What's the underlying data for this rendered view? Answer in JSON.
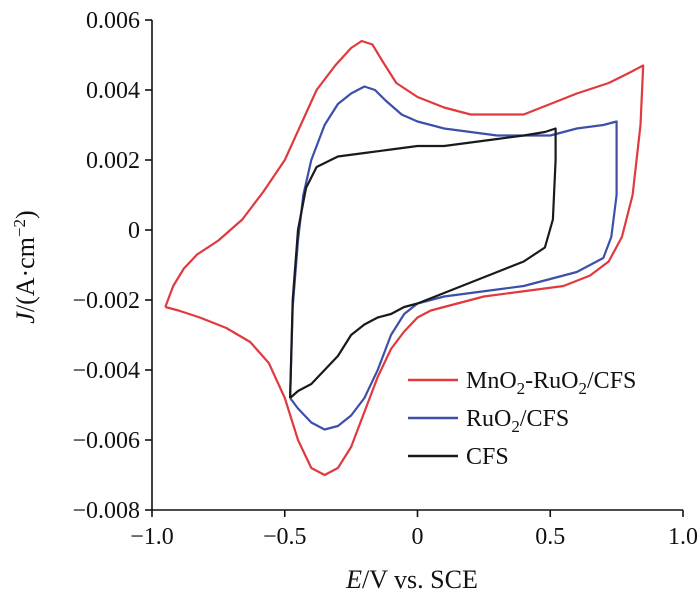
{
  "chart_data": {
    "type": "line",
    "title": "",
    "xlabel": {
      "italic": "E",
      "rest": "/V vs. SCE"
    },
    "ylabel": {
      "italic": "J",
      "pre": "/(A·cm",
      "sup": "−2",
      "post": ")"
    },
    "xlim": [
      -1.0,
      1.0
    ],
    "ylim": [
      -0.008,
      0.006
    ],
    "x_ticks": [
      {
        "value": -1.0,
        "label": "−1.0"
      },
      {
        "value": -0.5,
        "label": "−0.5"
      },
      {
        "value": 0,
        "label": "0"
      },
      {
        "value": 0.5,
        "label": "0.5"
      },
      {
        "value": 1.0,
        "label": "1.0"
      }
    ],
    "y_ticks": [
      {
        "value": 0.006,
        "label": "0.006"
      },
      {
        "value": 0.004,
        "label": "0.004"
      },
      {
        "value": 0.002,
        "label": "0.002"
      },
      {
        "value": 0,
        "label": "0"
      },
      {
        "value": -0.002,
        "label": "−0.002"
      },
      {
        "value": -0.004,
        "label": "−0.004"
      },
      {
        "value": -0.006,
        "label": "−0.006"
      },
      {
        "value": -0.008,
        "label": "−0.008"
      }
    ],
    "grid": false,
    "legend_position": "bottom-right",
    "series": [
      {
        "name": "MnO2-RuO2/CFS",
        "legend": {
          "parts": [
            {
              "t": "MnO"
            },
            {
              "t": "2",
              "sub": true
            },
            {
              "t": "-RuO"
            },
            {
              "t": "2",
              "sub": true
            },
            {
              "t": "/CFS"
            }
          ]
        },
        "color": "#e0393e",
        "points": [
          [
            -0.95,
            -0.0022
          ],
          [
            -0.92,
            -0.0016
          ],
          [
            -0.88,
            -0.0011
          ],
          [
            -0.83,
            -0.0007
          ],
          [
            -0.75,
            -0.0003
          ],
          [
            -0.66,
            0.0003
          ],
          [
            -0.58,
            0.0011
          ],
          [
            -0.5,
            0.002
          ],
          [
            -0.44,
            0.003
          ],
          [
            -0.38,
            0.004
          ],
          [
            -0.31,
            0.0047
          ],
          [
            -0.25,
            0.0052
          ],
          [
            -0.21,
            0.0054
          ],
          [
            -0.17,
            0.0053
          ],
          [
            -0.13,
            0.0048
          ],
          [
            -0.08,
            0.0042
          ],
          [
            0.0,
            0.0038
          ],
          [
            0.1,
            0.0035
          ],
          [
            0.2,
            0.0033
          ],
          [
            0.3,
            0.0033
          ],
          [
            0.4,
            0.0033
          ],
          [
            0.5,
            0.0036
          ],
          [
            0.6,
            0.0039
          ],
          [
            0.72,
            0.0042
          ],
          [
            0.8,
            0.0045
          ],
          [
            0.85,
            0.0047
          ],
          [
            0.84,
            0.003
          ],
          [
            0.81,
            0.001
          ],
          [
            0.77,
            -0.0002
          ],
          [
            0.72,
            -0.0009
          ],
          [
            0.65,
            -0.0013
          ],
          [
            0.55,
            -0.0016
          ],
          [
            0.45,
            -0.0017
          ],
          [
            0.35,
            -0.0018
          ],
          [
            0.25,
            -0.0019
          ],
          [
            0.15,
            -0.0021
          ],
          [
            0.05,
            -0.0023
          ],
          [
            0.0,
            -0.0025
          ],
          [
            -0.05,
            -0.0029
          ],
          [
            -0.1,
            -0.0034
          ],
          [
            -0.15,
            -0.0042
          ],
          [
            -0.2,
            -0.0052
          ],
          [
            -0.25,
            -0.0062
          ],
          [
            -0.3,
            -0.0068
          ],
          [
            -0.35,
            -0.007
          ],
          [
            -0.4,
            -0.0068
          ],
          [
            -0.45,
            -0.006
          ],
          [
            -0.5,
            -0.0048
          ],
          [
            -0.56,
            -0.0038
          ],
          [
            -0.63,
            -0.0032
          ],
          [
            -0.72,
            -0.0028
          ],
          [
            -0.82,
            -0.0025
          ],
          [
            -0.9,
            -0.0023
          ],
          [
            -0.95,
            -0.0022
          ]
        ]
      },
      {
        "name": "RuO2/CFS",
        "legend": {
          "parts": [
            {
              "t": "RuO"
            },
            {
              "t": "2",
              "sub": true
            },
            {
              "t": "/CFS"
            }
          ]
        },
        "color": "#3d4fa8",
        "points": [
          [
            -0.48,
            -0.0048
          ],
          [
            -0.47,
            -0.0022
          ],
          [
            -0.45,
            -0.0003
          ],
          [
            -0.43,
            0.001
          ],
          [
            -0.4,
            0.002
          ],
          [
            -0.35,
            0.003
          ],
          [
            -0.3,
            0.0036
          ],
          [
            -0.25,
            0.0039
          ],
          [
            -0.2,
            0.0041
          ],
          [
            -0.16,
            0.004
          ],
          [
            -0.12,
            0.0037
          ],
          [
            -0.06,
            0.0033
          ],
          [
            0.0,
            0.0031
          ],
          [
            0.1,
            0.0029
          ],
          [
            0.2,
            0.0028
          ],
          [
            0.3,
            0.0027
          ],
          [
            0.4,
            0.0027
          ],
          [
            0.5,
            0.0027
          ],
          [
            0.6,
            0.0029
          ],
          [
            0.7,
            0.003
          ],
          [
            0.75,
            0.0031
          ],
          [
            0.75,
            0.001
          ],
          [
            0.73,
            -0.0002
          ],
          [
            0.7,
            -0.0008
          ],
          [
            0.6,
            -0.0012
          ],
          [
            0.5,
            -0.0014
          ],
          [
            0.4,
            -0.0016
          ],
          [
            0.3,
            -0.0017
          ],
          [
            0.2,
            -0.0018
          ],
          [
            0.1,
            -0.0019
          ],
          [
            0.0,
            -0.0021
          ],
          [
            -0.05,
            -0.0024
          ],
          [
            -0.1,
            -0.003
          ],
          [
            -0.15,
            -0.004
          ],
          [
            -0.2,
            -0.0048
          ],
          [
            -0.25,
            -0.0053
          ],
          [
            -0.3,
            -0.0056
          ],
          [
            -0.35,
            -0.0057
          ],
          [
            -0.4,
            -0.0055
          ],
          [
            -0.45,
            -0.0051
          ],
          [
            -0.48,
            -0.0048
          ]
        ]
      },
      {
        "name": "CFS",
        "legend": {
          "parts": [
            {
              "t": "CFS"
            }
          ]
        },
        "color": "#1a1a1a",
        "points": [
          [
            -0.48,
            -0.0048
          ],
          [
            -0.47,
            -0.002
          ],
          [
            -0.45,
            0.0
          ],
          [
            -0.42,
            0.0012
          ],
          [
            -0.38,
            0.0018
          ],
          [
            -0.3,
            0.0021
          ],
          [
            -0.2,
            0.0022
          ],
          [
            -0.1,
            0.0023
          ],
          [
            0.0,
            0.0024
          ],
          [
            0.1,
            0.0024
          ],
          [
            0.2,
            0.0025
          ],
          [
            0.3,
            0.0026
          ],
          [
            0.4,
            0.0027
          ],
          [
            0.48,
            0.0028
          ],
          [
            0.52,
            0.0029
          ],
          [
            0.52,
            0.002
          ],
          [
            0.51,
            0.0003
          ],
          [
            0.48,
            -0.0005
          ],
          [
            0.4,
            -0.0009
          ],
          [
            0.3,
            -0.0012
          ],
          [
            0.2,
            -0.0015
          ],
          [
            0.1,
            -0.0018
          ],
          [
            0.0,
            -0.0021
          ],
          [
            -0.05,
            -0.0022
          ],
          [
            -0.1,
            -0.0024
          ],
          [
            -0.15,
            -0.0025
          ],
          [
            -0.2,
            -0.0027
          ],
          [
            -0.25,
            -0.003
          ],
          [
            -0.3,
            -0.0036
          ],
          [
            -0.35,
            -0.004
          ],
          [
            -0.4,
            -0.0044
          ],
          [
            -0.45,
            -0.0046
          ],
          [
            -0.48,
            -0.0048
          ]
        ]
      }
    ]
  }
}
